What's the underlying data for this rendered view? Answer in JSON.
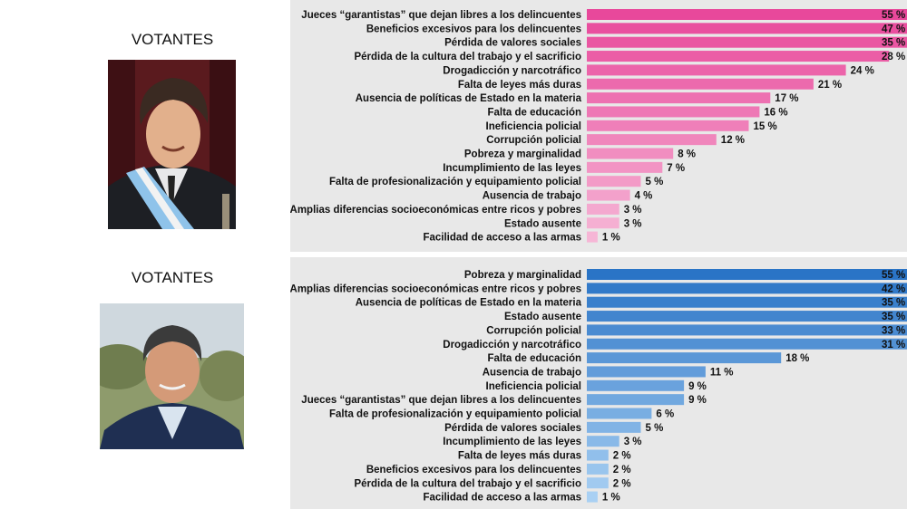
{
  "panels": [
    {
      "heading": "VOTANTES",
      "photo_icon": "person-photo-presidential-sash",
      "chart_data": {
        "type": "bar",
        "orientation": "horizontal",
        "series_name": "Votantes",
        "color_dark": "#e8489b",
        "color_light": "#f6b6d6",
        "categories": [
          "Jueces “garantistas” que dejan libres a los delincuentes",
          "Beneficios excesivos para los delincuentes",
          "Pérdida de valores sociales",
          "Pérdida de la cultura del trabajo y el sacrificio",
          "Drogadicción y narcotráfico",
          "Falta de leyes más duras",
          "Ausencia de políticas de Estado en la materia",
          "Falta de educación",
          "Ineficiencia policial",
          "Corrupción policial",
          "Pobreza y marginalidad",
          "Incumplimiento de las leyes",
          "Falta de profesionalización y equipamiento policial",
          "Ausencia de trabajo",
          "Amplias diferencias socioeconómicas entre ricos y pobres",
          "Estado ausente",
          "Facilidad de acceso a las armas"
        ],
        "values": [
          55,
          47,
          35,
          28,
          24,
          21,
          17,
          16,
          15,
          12,
          8,
          7,
          5,
          4,
          3,
          3,
          1
        ],
        "value_labels": [
          "55 %",
          "47 %",
          "35 %",
          "28 %",
          "24 %",
          "21 %",
          "17 %",
          "16 %",
          "15 %",
          "12 %",
          "8 %",
          "7 %",
          "5 %",
          "4 %",
          "3 %",
          "3 %",
          "1 %"
        ],
        "xlim": [
          0,
          55
        ]
      }
    },
    {
      "heading": "VOTANTES",
      "photo_icon": "person-photo-outdoor",
      "chart_data": {
        "type": "bar",
        "orientation": "horizontal",
        "series_name": "Votantes",
        "color_dark": "#2a74c6",
        "color_light": "#a9d0f3",
        "categories": [
          "Pobreza y marginalidad",
          "Amplias diferencias socioeconómicas entre ricos y pobres",
          "Ausencia de políticas de Estado en la materia",
          "Estado ausente",
          "Corrupción policial",
          "Drogadicción y narcotráfico",
          "Falta de educación",
          "Ausencia de trabajo",
          "Ineficiencia policial",
          "Jueces “garantistas” que dejan libres a los delincuentes",
          "Falta de profesionalización y equipamiento policial",
          "Pérdida de valores sociales",
          "Incumplimiento de las leyes",
          "Falta de leyes más duras",
          "Beneficios excesivos para los delincuentes",
          "Pérdida de la cultura del trabajo y el sacrificio",
          "Facilidad de acceso a las armas"
        ],
        "values": [
          55,
          42,
          35,
          35,
          33,
          31,
          18,
          11,
          9,
          9,
          6,
          5,
          3,
          2,
          2,
          2,
          1
        ],
        "value_labels": [
          "55 %",
          "42 %",
          "35 %",
          "35 %",
          "33 %",
          "31 %",
          "18 %",
          "11 %",
          "9 %",
          "9 %",
          "6 %",
          "5 %",
          "3 %",
          "2 %",
          "2 %",
          "2 %",
          "1 %"
        ],
        "xlim": [
          0,
          55
        ]
      }
    }
  ]
}
